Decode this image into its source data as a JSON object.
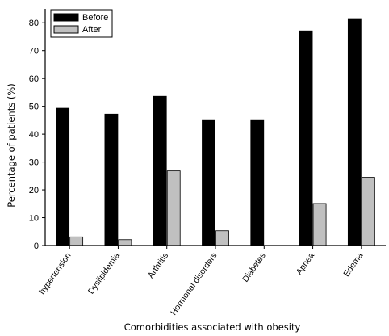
{
  "chart_data": {
    "type": "bar",
    "title": "",
    "xlabel": "Comorbidities associated with obesity",
    "ylabel": "Percentage of patients (%)",
    "ylim": [
      0,
      85
    ],
    "yticks": [
      0,
      10,
      20,
      30,
      40,
      50,
      60,
      70,
      80
    ],
    "categories": [
      "hypertension",
      "Dyslipidemia",
      "Arthritis",
      "Hormonal disorders",
      "Diabetes",
      "Apnea",
      "Edema"
    ],
    "series": [
      {
        "name": "Before",
        "color": "#000000",
        "values": [
          49.3,
          47.2,
          53.6,
          45.2,
          45.2,
          77.1,
          81.5
        ]
      },
      {
        "name": "After",
        "color": "#c0c0c0",
        "values": [
          3.1,
          2.1,
          26.8,
          5.3,
          0,
          15.1,
          24.5
        ]
      }
    ],
    "legend": "top-left",
    "grid": false
  }
}
